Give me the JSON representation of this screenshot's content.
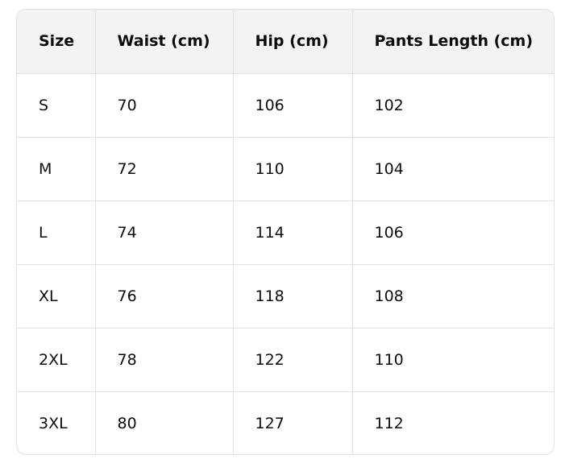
{
  "table": {
    "headers": [
      "Size",
      "Waist (cm)",
      "Hip (cm)",
      "Pants Length (cm)"
    ],
    "rows": [
      [
        "S",
        "70",
        "106",
        "102"
      ],
      [
        "M",
        "72",
        "110",
        "104"
      ],
      [
        "L",
        "74",
        "114",
        "106"
      ],
      [
        "XL",
        "76",
        "118",
        "108"
      ],
      [
        "2XL",
        "78",
        "122",
        "110"
      ],
      [
        "3XL",
        "80",
        "127",
        "112"
      ]
    ]
  }
}
